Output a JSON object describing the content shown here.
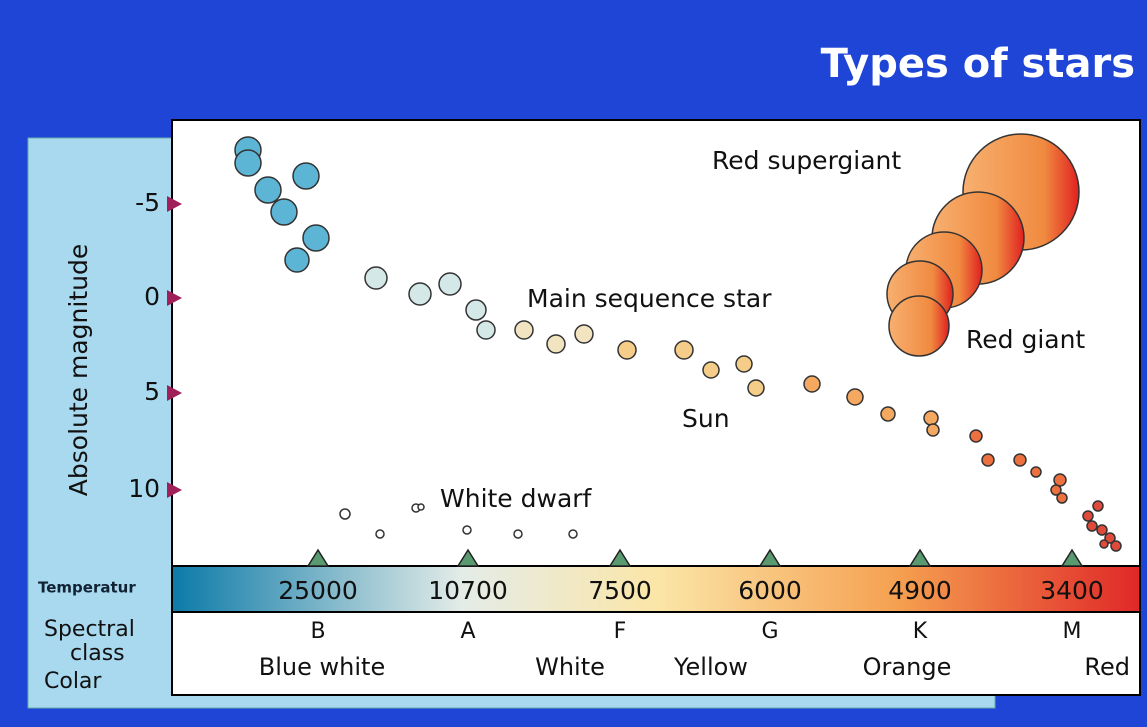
{
  "title": "Types of stars",
  "y_axis": {
    "label": "Absolute magnitude",
    "ticks": [
      -5,
      0,
      5,
      10
    ]
  },
  "annotations": {
    "red_supergiant": "Red supergiant",
    "main_sequence": "Main sequence star",
    "red_giant": "Red giant",
    "sun": "Sun",
    "white_dwarf": "White dwarf"
  },
  "bottom": {
    "temperature_label": "Temperatur",
    "spectral_label": [
      "Spectral",
      "class"
    ],
    "color_label": "Colar",
    "temperatures": [
      25000,
      10700,
      7500,
      6000,
      4900,
      3400
    ],
    "spectral_classes": [
      "B",
      "A",
      "F",
      "G",
      "K",
      "M"
    ],
    "colors": [
      "Blue white",
      "White",
      "Yellow",
      "Orange",
      "Red"
    ]
  }
}
